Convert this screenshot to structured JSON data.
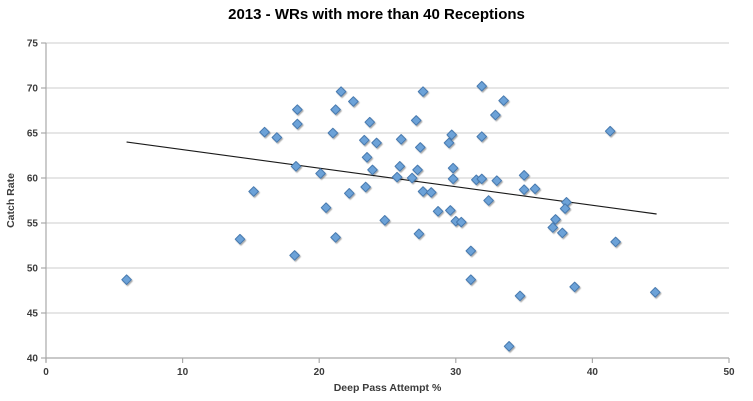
{
  "chart_data": {
    "type": "scatter",
    "title": "2013 - WRs with more than 40 Receptions",
    "xlabel": "Deep Pass Attempt %",
    "ylabel": "Catch Rate",
    "xlim": [
      0,
      50
    ],
    "ylim": [
      40,
      75
    ],
    "xticks": [
      0,
      10,
      20,
      30,
      40,
      50
    ],
    "yticks": [
      40,
      45,
      50,
      55,
      60,
      65,
      70,
      75
    ],
    "grid": "horizontal",
    "legend": "none",
    "marker": "diamond",
    "points": [
      [
        5.9,
        48.7
      ],
      [
        14.2,
        53.2
      ],
      [
        15.2,
        58.5
      ],
      [
        16.0,
        65.1
      ],
      [
        16.9,
        64.5
      ],
      [
        18.4,
        67.6
      ],
      [
        18.4,
        66.0
      ],
      [
        18.3,
        61.3
      ],
      [
        18.2,
        51.4
      ],
      [
        20.1,
        60.5
      ],
      [
        20.5,
        56.7
      ],
      [
        21.0,
        65.0
      ],
      [
        21.2,
        67.6
      ],
      [
        21.2,
        53.4
      ],
      [
        21.6,
        69.6
      ],
      [
        22.2,
        58.3
      ],
      [
        22.5,
        68.5
      ],
      [
        23.3,
        64.2
      ],
      [
        23.4,
        59.0
      ],
      [
        23.5,
        62.3
      ],
      [
        23.7,
        66.2
      ],
      [
        23.9,
        60.9
      ],
      [
        24.2,
        63.9
      ],
      [
        24.8,
        55.3
      ],
      [
        26.0,
        64.3
      ],
      [
        25.9,
        61.3
      ],
      [
        25.7,
        60.1
      ],
      [
        26.8,
        60.0
      ],
      [
        27.2,
        60.9
      ],
      [
        27.4,
        63.4
      ],
      [
        27.6,
        69.6
      ],
      [
        27.1,
        66.4
      ],
      [
        27.6,
        58.5
      ],
      [
        28.2,
        58.4
      ],
      [
        27.3,
        53.8
      ],
      [
        28.7,
        56.3
      ],
      [
        29.6,
        56.4
      ],
      [
        29.8,
        61.1
      ],
      [
        29.8,
        59.9
      ],
      [
        29.7,
        64.8
      ],
      [
        29.5,
        63.9
      ],
      [
        30.0,
        55.2
      ],
      [
        30.4,
        55.1
      ],
      [
        31.1,
        51.9
      ],
      [
        31.1,
        48.7
      ],
      [
        31.5,
        59.8
      ],
      [
        31.9,
        59.9
      ],
      [
        31.9,
        70.2
      ],
      [
        31.9,
        64.6
      ],
      [
        32.4,
        57.5
      ],
      [
        32.9,
        67.0
      ],
      [
        33.0,
        59.7
      ],
      [
        33.5,
        68.6
      ],
      [
        33.9,
        41.3
      ],
      [
        34.7,
        46.9
      ],
      [
        35.0,
        60.3
      ],
      [
        35.0,
        58.7
      ],
      [
        35.8,
        58.8
      ],
      [
        37.3,
        55.4
      ],
      [
        37.1,
        54.5
      ],
      [
        37.8,
        53.9
      ],
      [
        38.1,
        57.3
      ],
      [
        38.0,
        56.6
      ],
      [
        38.7,
        47.9
      ],
      [
        41.3,
        65.2
      ],
      [
        41.7,
        52.9
      ],
      [
        44.6,
        47.3
      ]
    ],
    "trendline": {
      "x1": 5.9,
      "y1": 64.0,
      "x2": 44.7,
      "y2": 56.0
    },
    "colors": {
      "point_fill": "#6CA2D8",
      "point_stroke": "#4779AE",
      "trendline": "#1a1a1a",
      "gridline": "#d8d8d8",
      "axis": "#a9a9a9",
      "text": "#3b3b3b",
      "title": "#000000"
    }
  }
}
